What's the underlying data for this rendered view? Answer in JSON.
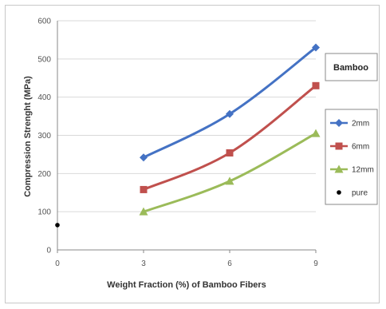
{
  "chart_data": {
    "type": "line",
    "title": "",
    "xlabel": "Weight Fraction (%) of Bamboo Fibers",
    "ylabel": "Compression Strenght (MPa)",
    "annotation": "Bamboo",
    "xlim": [
      0,
      9
    ],
    "ylim": [
      0,
      600
    ],
    "x_ticks": [
      0,
      3,
      6,
      9
    ],
    "y_ticks": [
      0,
      100,
      200,
      300,
      400,
      500,
      600
    ],
    "grid": "horizontal",
    "legend_position": "right",
    "series": [
      {
        "name": "2mm",
        "color": "#4472c4",
        "marker": "diamond",
        "x": [
          3,
          6,
          9
        ],
        "y": [
          242,
          356,
          530
        ]
      },
      {
        "name": "6mm",
        "color": "#c0504d",
        "marker": "square",
        "x": [
          3,
          6,
          9
        ],
        "y": [
          158,
          254,
          430
        ]
      },
      {
        "name": "12mm",
        "color": "#9bbb59",
        "marker": "triangle",
        "x": [
          3,
          6,
          9
        ],
        "y": [
          100,
          180,
          305
        ]
      },
      {
        "name": "pure",
        "color": "#000000",
        "marker": "dot",
        "x": [
          0
        ],
        "y": [
          65
        ]
      }
    ]
  }
}
